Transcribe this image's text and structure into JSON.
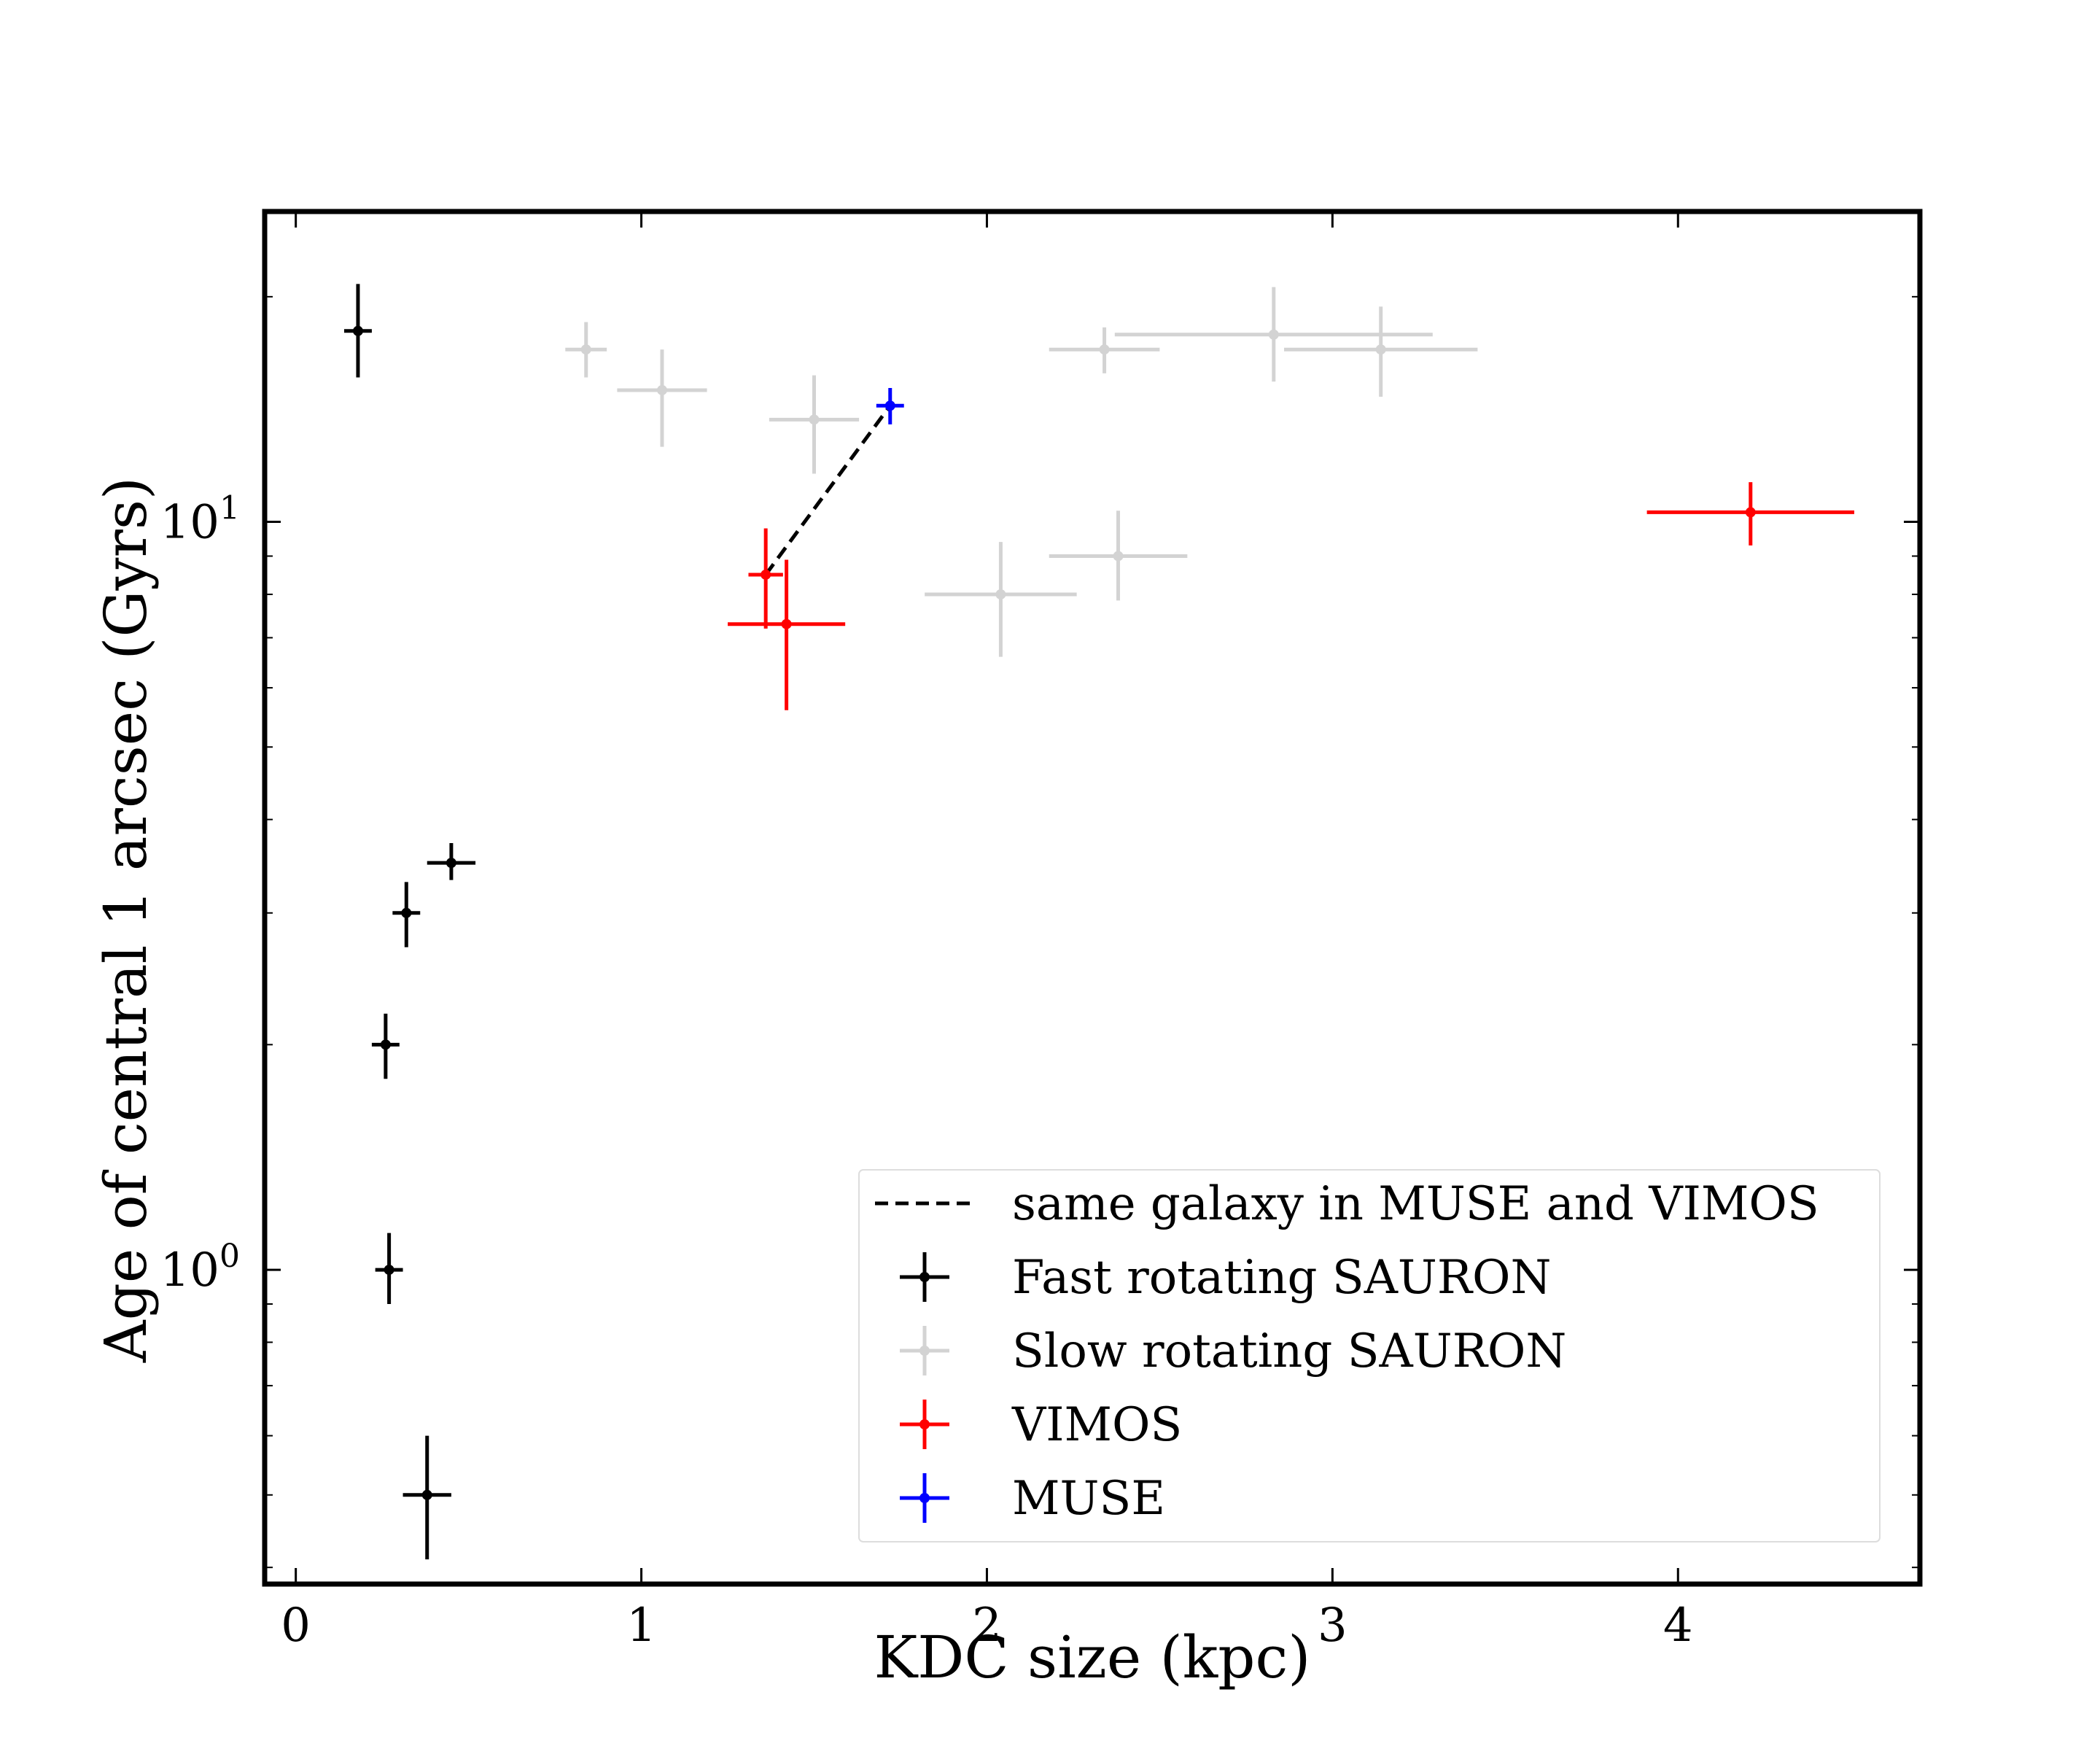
{
  "chart_data": {
    "type": "scatter",
    "xlabel": "KDC size (kpc)",
    "ylabel": "Age of central 1 arcsec (Gyrs)",
    "xlim": [
      -0.09,
      4.7
    ],
    "ylim": [
      0.38,
      26
    ],
    "y_scale": "log",
    "x_ticks": [
      {
        "value": 0,
        "label": "0"
      },
      {
        "value": 1,
        "label": "1"
      },
      {
        "value": 2,
        "label": "2"
      },
      {
        "value": 3,
        "label": "3"
      },
      {
        "value": 4,
        "label": "4"
      }
    ],
    "y_ticks": [
      {
        "value": 1,
        "base": "10",
        "exp": "0"
      },
      {
        "value": 10,
        "base": "10",
        "exp": "1"
      }
    ],
    "grid": false,
    "legend_position": "lower-right",
    "series": [
      {
        "name": "Fast rotating SAURON",
        "color": "#000000",
        "points": [
          {
            "x": 0.18,
            "xerr": 0.04,
            "y": 18.0,
            "ylo": 15.6,
            "yhi": 20.8
          },
          {
            "x": 0.45,
            "xerr": 0.07,
            "y": 3.5,
            "ylo": 3.32,
            "yhi": 3.72
          },
          {
            "x": 0.32,
            "xerr": 0.04,
            "y": 3.0,
            "ylo": 2.7,
            "yhi": 3.3
          },
          {
            "x": 0.26,
            "xerr": 0.04,
            "y": 2.0,
            "ylo": 1.8,
            "yhi": 2.2
          },
          {
            "x": 0.27,
            "xerr": 0.04,
            "y": 1.0,
            "ylo": 0.9,
            "yhi": 1.12
          },
          {
            "x": 0.38,
            "xerr": 0.07,
            "y": 0.5,
            "ylo": 0.41,
            "yhi": 0.6
          }
        ]
      },
      {
        "name": "Slow rotating SAURON",
        "color": "#d3d3d3",
        "points": [
          {
            "x": 0.84,
            "xerr": 0.06,
            "y": 17.0,
            "ylo": 15.6,
            "yhi": 18.5
          },
          {
            "x": 1.06,
            "xerr": 0.13,
            "y": 15.0,
            "ylo": 12.6,
            "yhi": 17.0
          },
          {
            "x": 1.5,
            "xerr": 0.13,
            "y": 13.7,
            "ylo": 11.6,
            "yhi": 15.7
          },
          {
            "x": 2.34,
            "xerr": 0.16,
            "y": 17.0,
            "ylo": 15.8,
            "yhi": 18.2
          },
          {
            "x": 2.83,
            "xerr": 0.46,
            "y": 17.8,
            "ylo": 15.4,
            "yhi": 20.6
          },
          {
            "x": 3.14,
            "xerr": 0.28,
            "y": 17.0,
            "ylo": 14.7,
            "yhi": 19.4
          },
          {
            "x": 2.38,
            "xerr": 0.2,
            "y": 9.0,
            "ylo": 7.85,
            "yhi": 10.35
          },
          {
            "x": 2.04,
            "xerr": 0.22,
            "y": 8.0,
            "ylo": 6.6,
            "yhi": 9.4
          }
        ]
      },
      {
        "name": "VIMOS",
        "color": "#ff0000",
        "points": [
          {
            "x": 1.36,
            "xerr": 0.05,
            "y": 8.5,
            "ylo": 7.2,
            "yhi": 9.8
          },
          {
            "x": 1.42,
            "xerr": 0.17,
            "y": 7.3,
            "ylo": 5.6,
            "yhi": 8.9
          },
          {
            "x": 4.21,
            "xerr": 0.3,
            "y": 10.3,
            "ylo": 9.3,
            "yhi": 11.3
          }
        ]
      },
      {
        "name": "MUSE",
        "color": "#0000ff",
        "points": [
          {
            "x": 1.72,
            "xerr": 0.04,
            "y": 14.3,
            "ylo": 13.5,
            "yhi": 15.1
          }
        ]
      }
    ],
    "lines": [
      {
        "name": "same galaxy in MUSE and VIMOS",
        "style": "dashed",
        "color": "#000000",
        "x": [
          1.36,
          1.72
        ],
        "y": [
          8.5,
          14.3
        ]
      }
    ],
    "legend": [
      {
        "label": "same galaxy in MUSE and VIMOS",
        "kind": "line",
        "color": "#000000"
      },
      {
        "label": "Fast rotating SAURON",
        "kind": "errorbar",
        "color": "#000000"
      },
      {
        "label": "Slow rotating SAURON",
        "kind": "errorbar",
        "color": "#d3d3d3"
      },
      {
        "label": "VIMOS",
        "kind": "errorbar",
        "color": "#ff0000"
      },
      {
        "label": "MUSE",
        "kind": "errorbar",
        "color": "#0000ff"
      }
    ]
  }
}
